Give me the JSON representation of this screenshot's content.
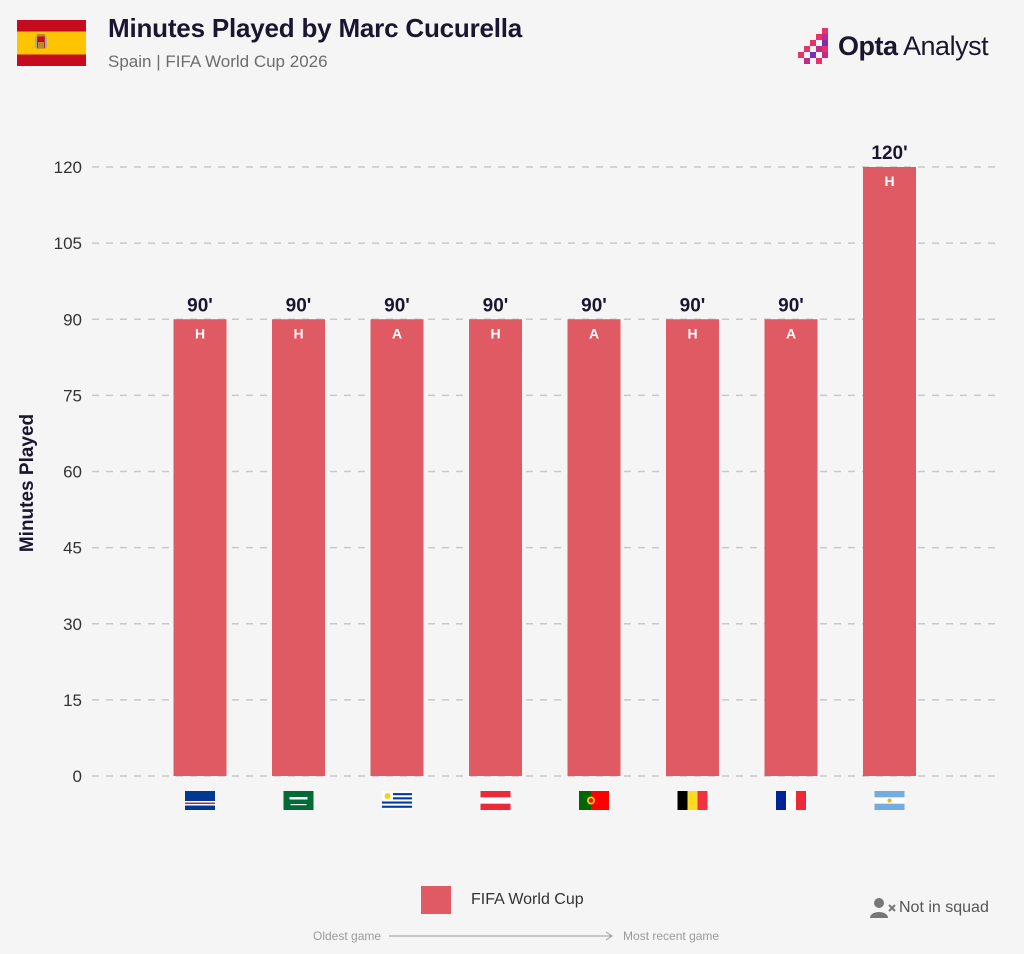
{
  "header": {
    "title": "Minutes Played by Marc Cucurella",
    "subtitle": "Spain | FIFA World Cup 2026",
    "flag_icon": "spain-flag-icon"
  },
  "brand": {
    "name_bold": "Opta",
    "name_light": " Analyst",
    "icon": "opta-logo-icon"
  },
  "chart_data": {
    "type": "bar",
    "title": "Minutes Played by Marc Cucurella",
    "subtitle": "Spain | FIFA World Cup 2026",
    "ylabel": "Minutes Played",
    "xlabel": "",
    "ylim": [
      0,
      120
    ],
    "yticks": [
      0,
      15,
      30,
      45,
      60,
      75,
      90,
      105,
      120
    ],
    "grid": true,
    "bar_color": "#e05a63",
    "categories": [
      "Cape Verde",
      "Saudi Arabia",
      "Uruguay",
      "Austria",
      "Portugal",
      "Belgium",
      "France",
      "Argentina"
    ],
    "flag_icons": [
      "cape-verde-flag-icon",
      "saudi-arabia-flag-icon",
      "uruguay-flag-icon",
      "austria-flag-icon",
      "portugal-flag-icon",
      "belgium-flag-icon",
      "france-flag-icon",
      "argentina-flag-icon"
    ],
    "values": [
      90,
      90,
      90,
      90,
      90,
      90,
      90,
      120
    ],
    "value_labels": [
      "90'",
      "90'",
      "90'",
      "90'",
      "90'",
      "90'",
      "90'",
      "120'"
    ],
    "venue": [
      "H",
      "H",
      "A",
      "H",
      "A",
      "H",
      "A",
      "H"
    ],
    "series": [
      {
        "name": "FIFA World Cup",
        "values": [
          90,
          90,
          90,
          90,
          90,
          90,
          90,
          120
        ]
      }
    ]
  },
  "legend": {
    "label": "FIFA World Cup",
    "color": "#e05a63"
  },
  "not_in_squad": {
    "label": "Not in squad",
    "icon": "person-not-in-squad-icon"
  },
  "timeline": {
    "start": "Oldest game",
    "end": "Most recent game"
  }
}
